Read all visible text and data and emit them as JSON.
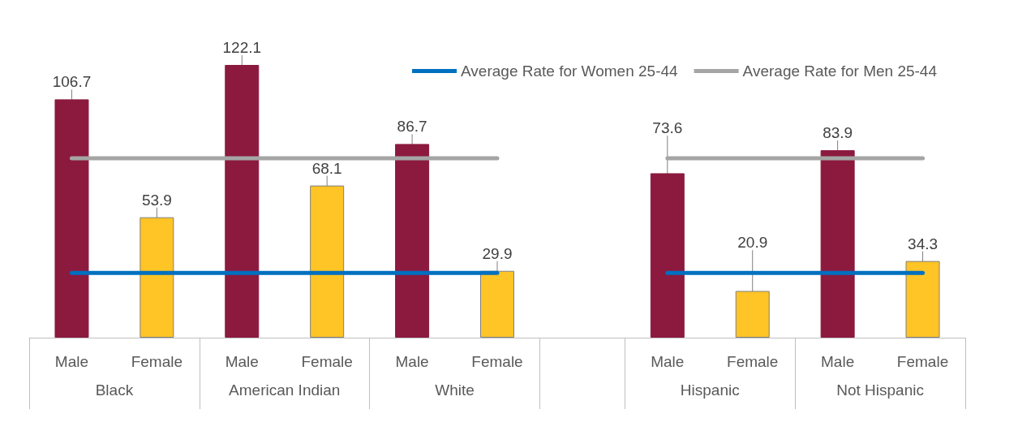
{
  "chart_data": {
    "type": "bar",
    "categories": [
      "Male",
      "Female",
      "Male",
      "Female",
      "Male",
      "Female",
      null,
      "Male",
      "Female",
      "Male",
      "Female"
    ],
    "annotations": [
      "Black",
      "American Indian",
      "White",
      "Hispanic",
      "Not Hispanic"
    ],
    "series": [
      {
        "values": [
          106.7,
          53.9,
          122.1,
          68.1,
          86.7,
          29.9,
          null,
          73.6,
          20.9,
          83.9,
          34.3
        ],
        "value_labels": [
          "106.7",
          "53.9",
          "122.1",
          "68.1",
          "86.7",
          "29.9",
          null,
          "73.6",
          "20.9",
          "83.9",
          "34.3"
        ],
        "colors": [
          "#8b1a3e",
          "#ffc425",
          "#8b1a3e",
          "#ffc425",
          "#8b1a3e",
          "#ffc425",
          "#8b1a3e",
          "#8b1a3e",
          "#ffc425",
          "#8b1a3e",
          "#ffc425"
        ]
      },
      {
        "type": "line",
        "name": "Average Rate for Women 25-44",
        "color": "#0070c0",
        "values": [
          29.0,
          29.0,
          29.0,
          29.0,
          29.0,
          29.0,
          null,
          29.0,
          29.0,
          29.0,
          29.0
        ]
      },
      {
        "type": "line",
        "name": "Average Rate for Men 25-44",
        "color": "#a5a5a5",
        "values": [
          80.3,
          80.3,
          80.3,
          80.3,
          80.3,
          80.3,
          null,
          80.3,
          80.3,
          80.3,
          80.3
        ]
      }
    ],
    "legend": "top right",
    "marker": "none"
  }
}
